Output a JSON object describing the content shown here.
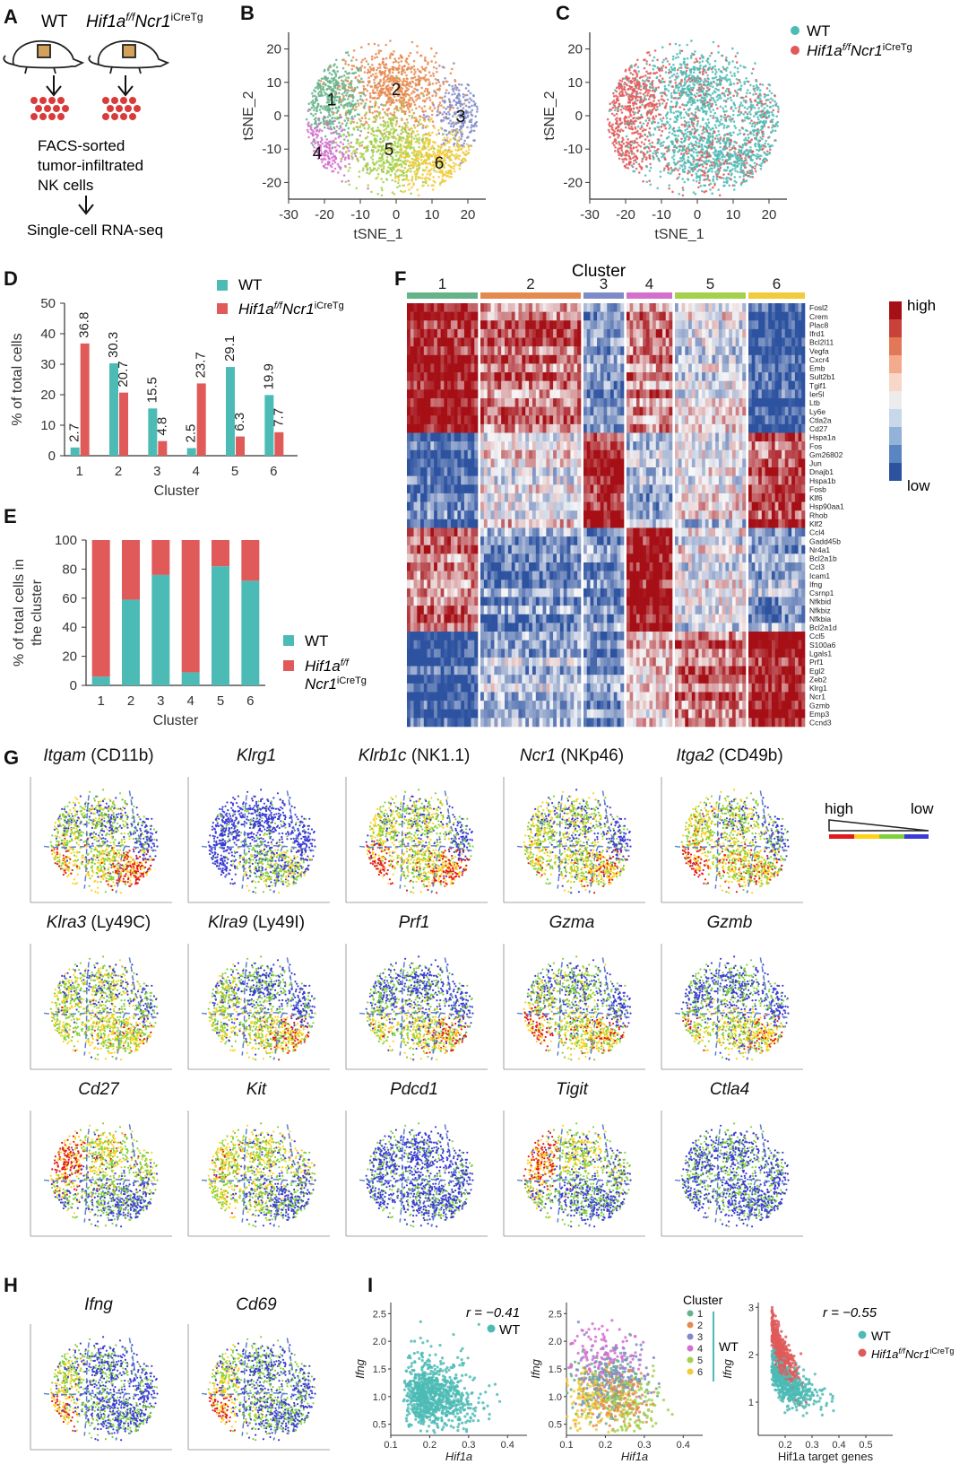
{
  "figure": {
    "panel_letters": [
      "A",
      "B",
      "C",
      "D",
      "E",
      "F",
      "G",
      "H",
      "I"
    ],
    "panel_a": {
      "wt_label": "WT",
      "ko_label_base": "Hif1a",
      "ko_label_sup1": "f/f",
      "ko_label_mid": "Ncr1",
      "ko_label_sup2": "iCreTg",
      "step_1": "FACS-sorted",
      "step_2": "tumor-infiltrated",
      "step_3": "NK cells",
      "step_4": "Single-cell RNA-seq"
    },
    "legend_wt": "WT",
    "legend_ko_base": "Hif1a",
    "legend_ko_sup1": "f/f",
    "legend_ko_mid": "Ncr1",
    "legend_ko_sup2": "iCreTg",
    "colors": {
      "wt": "#4dbbb5",
      "ko": "#e05a5a",
      "cluster1": "#66b38a",
      "cluster2": "#e58a4f",
      "cluster3": "#7f8bc8",
      "cluster4": "#d46fce",
      "cluster5": "#a4d14c",
      "cluster6": "#f2cb3a",
      "heat_high": "#a50f15",
      "heat_low": "#2c52a0",
      "expr_high": "#e31a1c",
      "expr_mid": "#ffd11a",
      "expr_midlow": "#7fd13b",
      "expr_low": "#3b3bd6"
    },
    "heatmap_legend": {
      "high": "high",
      "low": "low"
    },
    "heatmap_title": "Cluster",
    "expr_legend": {
      "high": "high",
      "low": "low"
    },
    "panel_g_titles": [
      {
        "gene": "Itgam",
        "alias": " (CD11b)"
      },
      {
        "gene": "Klrg1",
        "alias": ""
      },
      {
        "gene": "Klrb1c",
        "alias": " (NK1.1)"
      },
      {
        "gene": "Ncr1",
        "alias": " (NKp46)"
      },
      {
        "gene": "Itga2",
        "alias": " (CD49b)"
      },
      {
        "gene": "Klra3",
        "alias": " (Ly49C)"
      },
      {
        "gene": "Klra9",
        "alias": " (Ly49I)"
      },
      {
        "gene": "Prf1",
        "alias": ""
      },
      {
        "gene": "Gzma",
        "alias": ""
      },
      {
        "gene": "Gzmb",
        "alias": ""
      },
      {
        "gene": "Cd27",
        "alias": ""
      },
      {
        "gene": "Kit",
        "alias": ""
      },
      {
        "gene": "Pdcd1",
        "alias": ""
      },
      {
        "gene": "Tigit",
        "alias": ""
      },
      {
        "gene": "Ctla4",
        "alias": ""
      }
    ],
    "panel_h_titles": [
      {
        "gene": "Ifng",
        "alias": ""
      },
      {
        "gene": "Cd69",
        "alias": ""
      }
    ],
    "panel_i": {
      "r1": "r = −0.41",
      "r3": "r = −0.55",
      "legend_wt": "WT",
      "legend_cluster": "Cluster",
      "cluster_labels": [
        "1",
        "2",
        "3",
        "4",
        "5",
        "6"
      ],
      "xlabel_1": "Hif1a",
      "xlabel_2": "Hif1a",
      "xlabel_3": "Hif1a target genes",
      "ylabel": "Ifng"
    }
  },
  "chart_data": [
    {
      "panel": "B",
      "type": "scatter",
      "xlabel": "tSNE_1",
      "ylabel": "tSNE_2",
      "xlim": [
        -30,
        25
      ],
      "ylim": [
        -25,
        25
      ],
      "xticks": [
        -30,
        -20,
        -10,
        0,
        10,
        20
      ],
      "yticks": [
        20,
        10,
        0,
        -10,
        -20
      ],
      "series": [
        {
          "name": "1",
          "center": [
            -18,
            5
          ]
        },
        {
          "name": "2",
          "center": [
            0,
            8
          ]
        },
        {
          "name": "3",
          "center": [
            18,
            0
          ]
        },
        {
          "name": "4",
          "center": [
            -22,
            -11
          ]
        },
        {
          "name": "5",
          "center": [
            -2,
            -10
          ]
        },
        {
          "name": "6",
          "center": [
            12,
            -14
          ]
        }
      ]
    },
    {
      "panel": "C",
      "type": "scatter",
      "xlabel": "tSNE_1",
      "ylabel": "tSNE_2",
      "xlim": [
        -30,
        25
      ],
      "ylim": [
        -25,
        25
      ],
      "xticks": [
        -30,
        -20,
        -10,
        0,
        10,
        20
      ],
      "yticks": [
        20,
        10,
        0,
        -10,
        -20
      ],
      "series": [
        {
          "name": "WT",
          "region": "clusters 2, 3, 5, 6"
        },
        {
          "name": "Hif1af/fNcr1iCreTg",
          "region": "clusters 1, 4"
        }
      ]
    },
    {
      "panel": "D",
      "type": "bar",
      "xlabel": "Cluster",
      "ylabel": "% of total cells",
      "categories": [
        "1",
        "2",
        "3",
        "4",
        "5",
        "6"
      ],
      "ylim": [
        0,
        50
      ],
      "yticks": [
        0,
        10,
        20,
        30,
        40,
        50
      ],
      "series": [
        {
          "name": "WT",
          "values": [
            2.7,
            30.3,
            15.5,
            2.5,
            29.1,
            19.9
          ],
          "labels": [
            "2.7",
            "30.3",
            "15.5",
            "2.5",
            "29.1",
            "19.9"
          ]
        },
        {
          "name": "Hif1af/fNcr1iCreTg",
          "values": [
            36.8,
            20.7,
            4.8,
            23.7,
            6.3,
            7.7
          ],
          "labels": [
            "36.8",
            "20.7",
            "4.8",
            "23.7",
            "6.3",
            "7.7"
          ]
        }
      ]
    },
    {
      "panel": "E",
      "type": "bar",
      "stacked": true,
      "xlabel": "Cluster",
      "ylabel": "% of total cells in the cluster",
      "categories": [
        "1",
        "2",
        "3",
        "4",
        "5",
        "6"
      ],
      "ylim": [
        0,
        100
      ],
      "yticks": [
        0,
        20,
        40,
        60,
        80,
        100
      ],
      "series": [
        {
          "name": "WT",
          "values": [
            6,
            59,
            76,
            9,
            82,
            72
          ]
        },
        {
          "name": "Hif1af/fNcr1iCreTg",
          "values": [
            94,
            41,
            24,
            91,
            18,
            28
          ]
        }
      ]
    },
    {
      "panel": "F",
      "type": "heatmap",
      "title": "Cluster",
      "columns": [
        "1",
        "2",
        "3",
        "4",
        "5",
        "6"
      ],
      "rows": [
        "Fosl2",
        "Crem",
        "Plac8",
        "Ifrd1",
        "Bcl2l11",
        "Vegfa",
        "Cxcr4",
        "Emb",
        "Sult2b1",
        "Tgif1",
        "Ier5l",
        "Ltb",
        "Ly6e",
        "Ctla2a",
        "Cd27",
        "Hspa1a",
        "Fos",
        "Gm26802",
        "Jun",
        "Dnajb1",
        "Hspa1b",
        "Fosb",
        "Klf6",
        "Hsp90aa1",
        "Rhob",
        "Klf2",
        "Ccl4",
        "Gadd45b",
        "Nr4a1",
        "Bcl2a1b",
        "Ccl3",
        "Icam1",
        "Ifng",
        "Csrnp1",
        "Nfkbid",
        "Nfkbiz",
        "Nfkbia",
        "Bcl2a1d",
        "Ccl5",
        "S100a6",
        "Lgals1",
        "Prf1",
        "Egl2",
        "Zeb2",
        "Klrg1",
        "Ncr1",
        "Gzmb",
        "Emp3",
        "Ccnd3"
      ],
      "scale": [
        "high",
        "low"
      ]
    },
    {
      "panel": "I-1",
      "type": "scatter",
      "xlabel": "Hif1a",
      "ylabel": "Ifng",
      "xlim": [
        0.1,
        0.45
      ],
      "ylim": [
        0.3,
        2.7
      ],
      "xticks": [
        0.1,
        0.2,
        0.3,
        0.4
      ],
      "yticks": [
        0.5,
        1.0,
        1.5,
        2.0,
        2.5
      ],
      "annotation": "r = −0.41",
      "series": [
        {
          "name": "WT"
        }
      ]
    },
    {
      "panel": "I-2",
      "type": "scatter",
      "xlabel": "Hif1a",
      "ylabel": "Ifng",
      "xlim": [
        0.1,
        0.45
      ],
      "ylim": [
        0.3,
        2.7
      ],
      "xticks": [
        0.1,
        0.2,
        0.3,
        0.4
      ],
      "yticks": [
        0.5,
        1.0,
        1.5,
        2.0,
        2.5
      ],
      "series": [
        {
          "name": "1"
        },
        {
          "name": "2"
        },
        {
          "name": "3"
        },
        {
          "name": "4"
        },
        {
          "name": "5"
        },
        {
          "name": "6"
        }
      ]
    },
    {
      "panel": "I-3",
      "type": "scatter",
      "xlabel": "Hif1a target genes",
      "ylabel": "Ifng",
      "xlim": [
        0.1,
        0.6
      ],
      "ylim": [
        0.3,
        3.1
      ],
      "xticks": [
        0.2,
        0.3,
        0.4,
        0.5
      ],
      "yticks": [
        1,
        2,
        3
      ],
      "annotation": "r = −0.55",
      "series": [
        {
          "name": "WT"
        },
        {
          "name": "Hif1af/fNcr1iCreTg"
        }
      ]
    }
  ]
}
